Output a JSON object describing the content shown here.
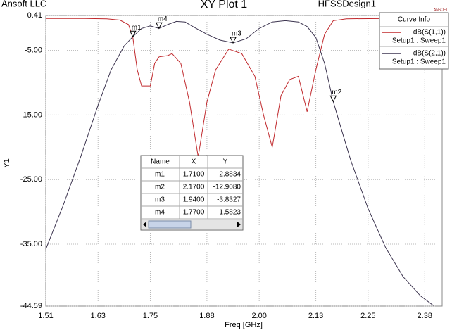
{
  "chart_data": {
    "type": "line",
    "brand": "Ansoft LLC",
    "title": "XY Plot 1",
    "design": "HFSSDesign1",
    "logo": "ANSOFT",
    "x_label": "Freq [GHz]",
    "y_label": "Y1",
    "xlim": [
      1.51,
      2.42
    ],
    "xticks": [
      1.51,
      1.63,
      1.75,
      1.88,
      {
        "value": 2,
        "label": "2.00"
      },
      2.13,
      2.25,
      2.38
    ],
    "ylim": [
      -44.59,
      0.41
    ],
    "yticks": [
      0.41,
      {
        "value": -5,
        "label": "-5.00"
      },
      {
        "value": -15,
        "label": "-15.00"
      },
      {
        "value": -25,
        "label": "-25.00"
      },
      {
        "value": -35,
        "label": "-35.00"
      },
      -44.59
    ],
    "grid": true,
    "legend_title": "Curve Info",
    "legend": "upper right",
    "series": [
      {
        "name": "dB(S(1,1))",
        "setup": "Setup1 : Sweep1",
        "color": "#c0282c",
        "x": [
          1.51,
          1.55,
          1.6,
          1.65,
          1.68,
          1.7,
          1.71,
          1.72,
          1.73,
          1.75,
          1.76,
          1.77,
          1.79,
          1.8,
          1.82,
          1.84,
          1.86,
          1.88,
          1.9,
          1.93,
          1.96,
          1.99,
          2.01,
          2.03,
          2.05,
          2.07,
          2.09,
          2.11,
          2.13,
          2.15,
          2.17,
          2.2,
          2.3,
          2.42
        ],
        "values": [
          -0.05,
          -0.05,
          -0.06,
          -0.1,
          -0.3,
          -1.0,
          -3.0,
          -8.0,
          -10.5,
          -10.5,
          -7.0,
          -6.0,
          -5.8,
          -5.5,
          -7.0,
          -13.0,
          -21.5,
          -13.0,
          -8.0,
          -4.8,
          -5.5,
          -9.0,
          -15.0,
          -20.0,
          -12.0,
          -9.5,
          -9.0,
          -14.5,
          -8.0,
          -2.5,
          -0.4,
          -0.1,
          -0.05,
          -0.05
        ]
      },
      {
        "name": "dB(S(2,1))",
        "setup": "Setup1 : Sweep1",
        "color": "#3d3550",
        "x": [
          1.51,
          1.55,
          1.59,
          1.63,
          1.66,
          1.69,
          1.71,
          1.73,
          1.75,
          1.77,
          1.79,
          1.81,
          1.83,
          1.85,
          1.88,
          1.91,
          1.94,
          1.97,
          2.0,
          2.03,
          2.06,
          2.09,
          2.11,
          2.13,
          2.15,
          2.17,
          2.19,
          2.21,
          2.25,
          2.29,
          2.33,
          2.37,
          2.4
        ],
        "values": [
          -35.8,
          -29.0,
          -21.5,
          -13.5,
          -8.0,
          -4.3,
          -2.88,
          -1.6,
          -1.2,
          -1.58,
          -1.0,
          -0.5,
          -0.6,
          -1.4,
          -2.5,
          -3.4,
          -3.83,
          -3.2,
          -1.6,
          -0.6,
          -0.4,
          -0.6,
          -1.3,
          -3.0,
          -7.0,
          -12.908,
          -17.5,
          -22.0,
          -29.5,
          -35.5,
          -40.0,
          -43.0,
          -44.5
        ]
      }
    ],
    "marker_table": {
      "headers": [
        "Name",
        "X",
        "Y"
      ]
    },
    "markers": [
      {
        "name": "m1",
        "x": 1.71,
        "x_label": "1.7100",
        "y": -2.8834
      },
      {
        "name": "m2",
        "x": 2.17,
        "x_label": "2.1700",
        "y": -12.908,
        "y_label": "-12.9080"
      },
      {
        "name": "m3",
        "x": 1.94,
        "x_label": "1.9400",
        "y": -3.8327
      },
      {
        "name": "m4",
        "x": 1.77,
        "x_label": "1.7700",
        "y": -1.5823
      }
    ]
  }
}
